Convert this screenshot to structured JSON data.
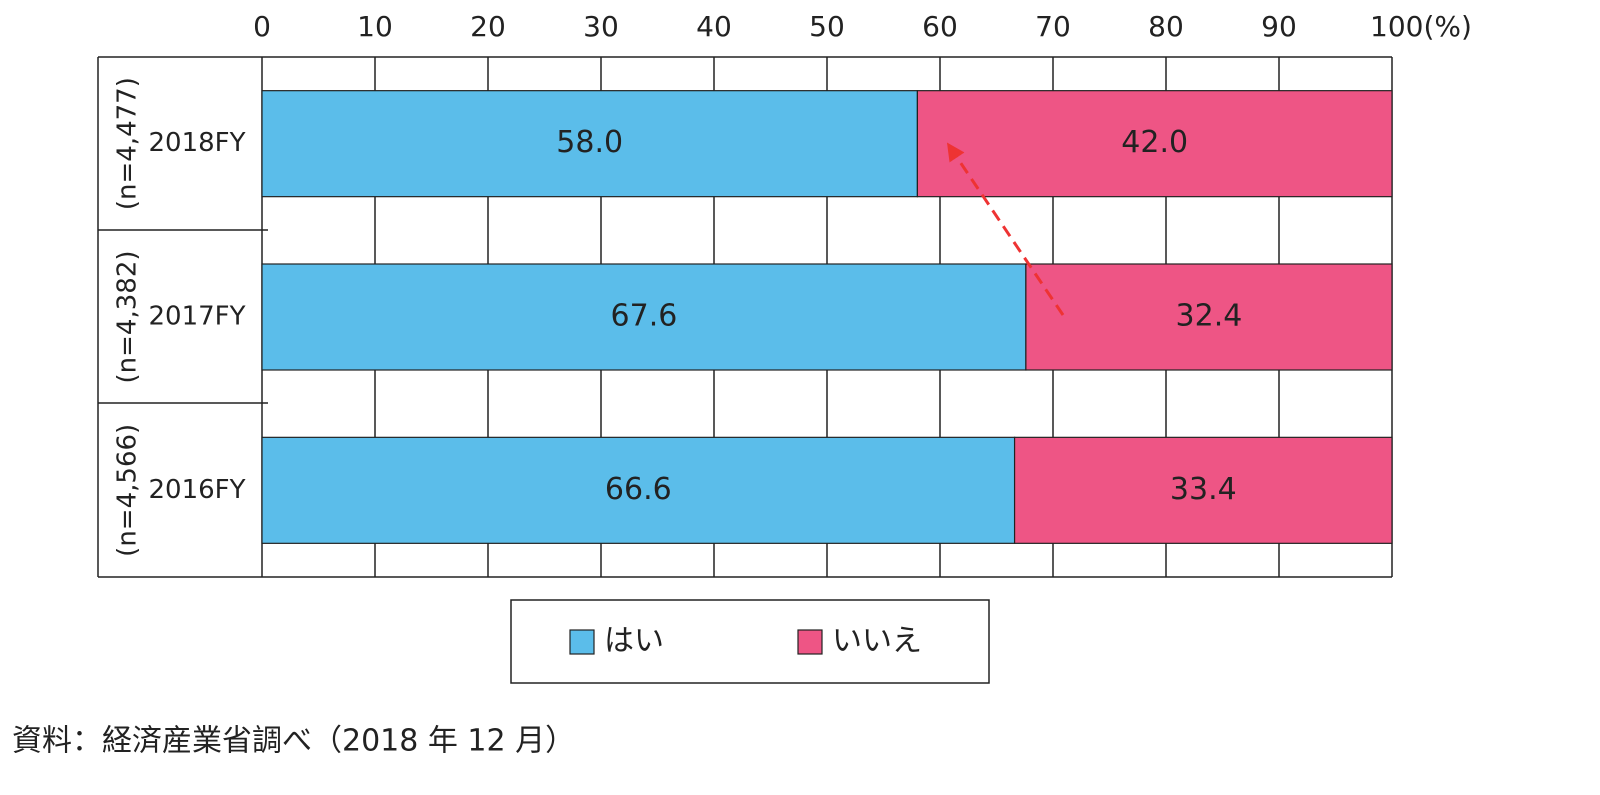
{
  "chart_data": {
    "type": "stacked-bar-horizontal",
    "categories": [
      "2018FY",
      "2017FY",
      "2016FY"
    ],
    "category_notes": [
      "(n=4,477)",
      "(n=4,382)",
      "(n=4,566)"
    ],
    "series": [
      {
        "name": "はい",
        "color": "#5bbdea",
        "values": [
          58.0,
          67.6,
          66.6
        ],
        "value_labels": [
          "58.0",
          "67.6",
          "66.6"
        ]
      },
      {
        "name": "いいえ",
        "color": "#ee5585",
        "values": [
          42.0,
          32.4,
          33.4
        ],
        "value_labels": [
          "42.0",
          "32.4",
          "33.4"
        ]
      }
    ],
    "xlim": [
      0,
      100
    ],
    "xticks": [
      0,
      10,
      20,
      30,
      40,
      50,
      60,
      70,
      80,
      90,
      {
        "value": 100,
        "label": "100(%)"
      }
    ],
    "grid": true,
    "source": "資料：経済産業省調べ（2018 年 12 月）"
  }
}
